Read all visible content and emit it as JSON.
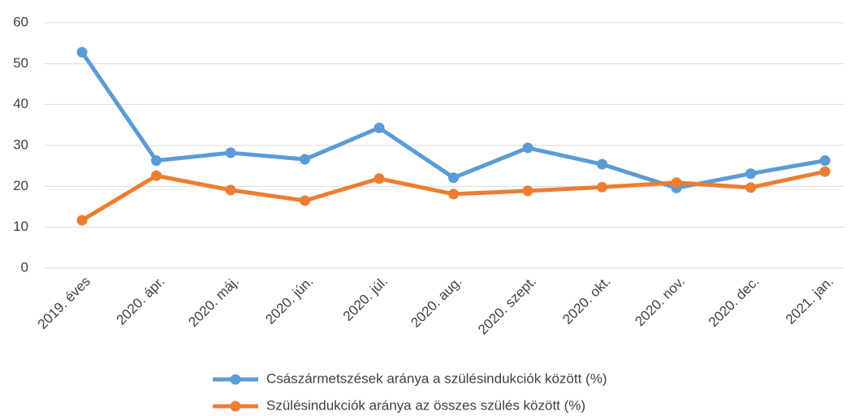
{
  "chart_data": {
    "type": "line",
    "categories": [
      "2019. éves",
      "2020. ápr.",
      "2020. máj.",
      "2020. jún.",
      "2020. júl.",
      "2020. aug.",
      "2020. szept.",
      "2020. okt.",
      "2020. nov.",
      "2020. dec.",
      "2021. jan."
    ],
    "series": [
      {
        "name": "Császármetszések aránya a szülésindukciók között (%)",
        "color": "#5b9bd5",
        "values": [
          52.8,
          26.3,
          28.2,
          26.6,
          34.3,
          22.1,
          29.4,
          25.4,
          19.6,
          23.1,
          26.3
        ]
      },
      {
        "name": "Szülésindukciók aránya az összes szülés között (%)",
        "color": "#ed7d31",
        "values": [
          11.7,
          22.6,
          19.1,
          16.5,
          21.9,
          18.1,
          18.9,
          19.8,
          20.9,
          19.7,
          23.6
        ]
      }
    ],
    "ylim": [
      0,
      60
    ],
    "yticks": [
      0,
      10,
      20,
      30,
      40,
      50,
      60
    ],
    "grid": true,
    "legend": "bottom"
  }
}
